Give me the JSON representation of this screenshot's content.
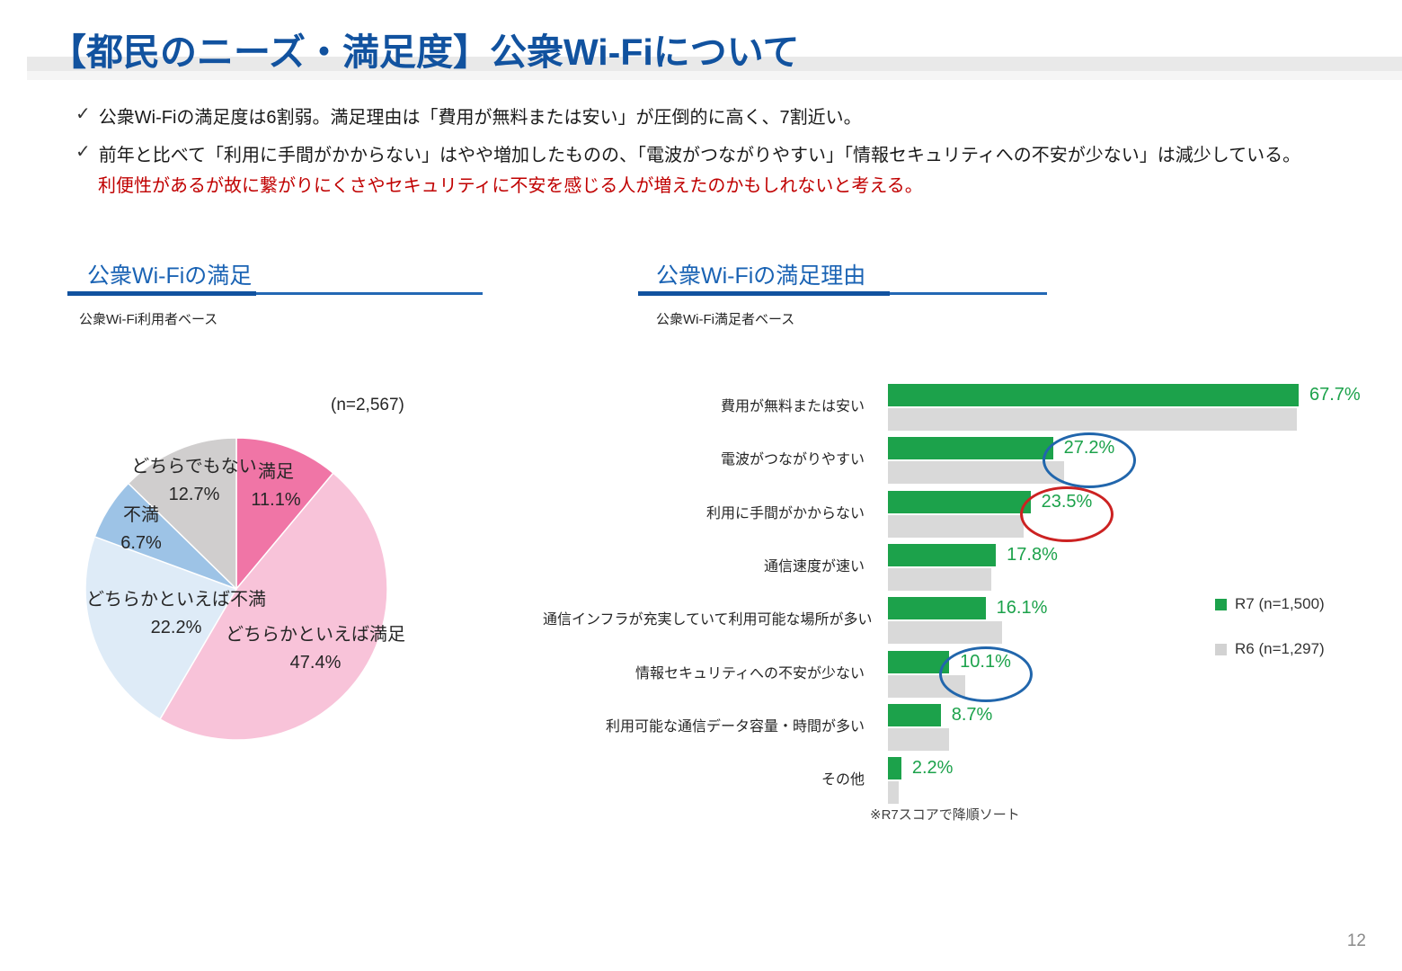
{
  "page": {
    "title": "【都民のニーズ・満足度】公衆Wi-Fiについて",
    "page_number": "12"
  },
  "bullets": {
    "check_glyph": "✓",
    "line1": "公衆Wi-Fiの満足度は6割弱。満足理由は「費用が無料または安い」が圧倒的に高く、7割近い。",
    "line2": "前年と比べて「利用に手間がかからない」はやや増加したものの、「電波がつながりやすい」「情報セキュリティへの不安が少ない」は減少している。",
    "note": "利便性があるが故に繋がりにくさやセキュリティに不安を感じる人が増えたのかもしれないと考える。",
    "note_color": "#c00000"
  },
  "pie_section": {
    "title": "公衆Wi-Fiの満足",
    "base_label": "公衆Wi-Fi利用者ベース",
    "n_label": "(n=2,567)"
  },
  "bar_section": {
    "title": "公衆Wi-Fiの満足理由",
    "base_label": "公衆Wi-Fi満足者ベース",
    "footnote": "※R7スコアで降順ソート",
    "legend": [
      {
        "label": "R7 (n=1,500)",
        "color": "#1ca24b"
      },
      {
        "label": "R6 (n=1,297)",
        "color": "#d2d2d2"
      }
    ]
  },
  "chart_data": [
    {
      "type": "pie",
      "title": "公衆Wi-Fiの満足",
      "n": 2567,
      "unit": "%",
      "start": "top",
      "direction": "clockwise",
      "labels": [
        "満足",
        "どちらかといえば満足",
        "どちらかといえば不満",
        "不満",
        "どちらでもない"
      ],
      "values": [
        11.1,
        47.4,
        22.2,
        6.7,
        12.7
      ],
      "colors": [
        "#f075a6",
        "#f8c3d9",
        "#deebf7",
        "#9dc3e6",
        "#d0cece"
      ]
    },
    {
      "type": "bar",
      "orientation": "horizontal",
      "title": "公衆Wi-Fiの満足理由",
      "unit": "%",
      "xlim": [
        0,
        70
      ],
      "sort_note": "※R7スコアで降順ソート",
      "categories": [
        "費用が無料または安い",
        "電波がつながりやすい",
        "利用に手間がかからない",
        "通信速度が速い",
        "通信インフラが充実していて利用可能な場所が多い",
        "情報セキュリティへの不安が少ない",
        "利用可能な通信データ容量・時間が多い",
        "その他"
      ],
      "series": [
        {
          "name": "R7 (n=1,500)",
          "color": "#1ca24b",
          "values": [
            67.7,
            27.2,
            23.5,
            17.8,
            16.1,
            10.1,
            8.7,
            2.2
          ],
          "value_labels_shown": true
        },
        {
          "name": "R6 (n=1,297)",
          "color": "#d9d9d9",
          "values": [
            67.4,
            29.0,
            22.4,
            17.1,
            18.8,
            12.8,
            10.1,
            1.8
          ],
          "value_labels_shown": false
        }
      ],
      "annotations": [
        {
          "category_index": 1,
          "shape": "ellipse",
          "color": "#2166ac"
        },
        {
          "category_index": 2,
          "shape": "ellipse",
          "color": "#cc2222"
        },
        {
          "category_index": 5,
          "shape": "ellipse",
          "color": "#2166ac"
        }
      ]
    }
  ]
}
